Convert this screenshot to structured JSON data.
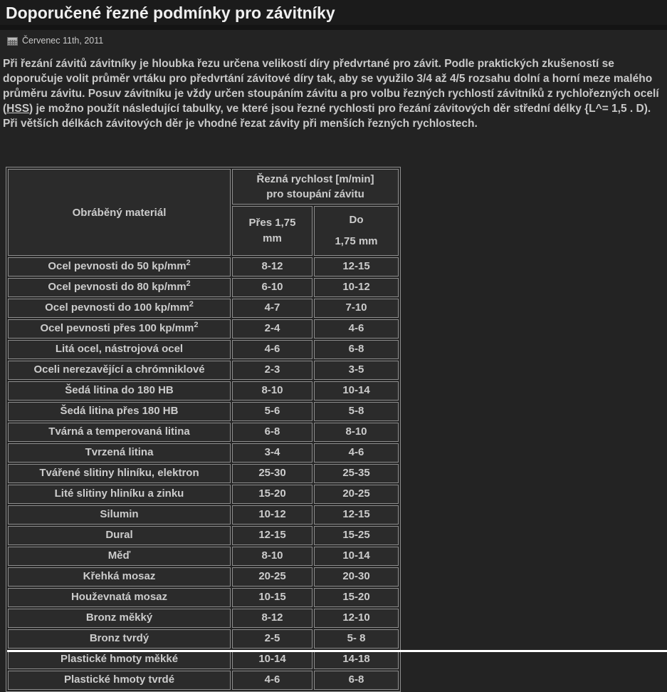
{
  "header": {
    "title": "Doporučené řezné podmínky pro závitníky",
    "date": "Červenec 11th, 2011"
  },
  "article": {
    "text_before_link": "Při řezání závitů závitníky je hloubka řezu určena velikostí díry předvrtané pro závit. Podle praktických zkušeností se doporučuje volit průměr vrtáku pro předvrtání závitové díry tak, aby se využilo 3/4 až 4/5 rozsahu dolní a horní meze malého průměru závitu. Posuv závitníku je vždy určen stoupáním závitu a pro volbu řezných rychlostí závitníků z rychlořezných ocelí (",
    "link_text": "HSS",
    "text_after_link": ") je možno použít následující tabulky, ve které jsou řezné rychlosti pro řezání závitových děr střední délky {L^= 1,5 . D). Při větších délkách závitových děr je vhodné řezat závity při menších řezných rychlostech."
  },
  "table": {
    "header": {
      "material": "Obráběný materiál",
      "speed_group": [
        "Řezná rychlost [m/min]",
        "pro stoupání závitu"
      ],
      "over_pitch": [
        "Přes 1,75",
        "mm"
      ],
      "under_pitch": [
        "Do",
        "1,75 mm"
      ]
    },
    "rows": [
      {
        "material": "Ocel pevnosti do 50 kp/mm",
        "sup": "2",
        "over": "8-12",
        "under": "12-15"
      },
      {
        "material": "Ocel pevnosti do 80 kp/mm",
        "sup": "2",
        "over": "6-10",
        "under": "10-12"
      },
      {
        "material": "Ocel pevnosti do 100 kp/mm",
        "sup": "2",
        "over": "4-7",
        "under": "7-10"
      },
      {
        "material": "Ocel pevnosti přes 100 kp/mm",
        "sup": "2",
        "over": "2-4",
        "under": "4-6"
      },
      {
        "material": "Litá ocel, nástrojová ocel",
        "over": "4-6",
        "under": "6-8"
      },
      {
        "material": "Oceli nerezavějící a chrómniklové",
        "over": "2-3",
        "under": "3-5"
      },
      {
        "material": "Šedá litina do 180 HB",
        "over": "8-10",
        "under": "10-14"
      },
      {
        "material": "Šedá litina přes 180 HB",
        "over": "5-6",
        "under": "5-8"
      },
      {
        "material": "Tvárná a temperovaná litina",
        "over": "6-8",
        "under": "8-10"
      },
      {
        "material": "Tvrzená litina",
        "over": "3-4",
        "under": "4-6"
      },
      {
        "material": "Tvářené slitiny hliníku, elektron",
        "over": "25-30",
        "under": "25-35"
      },
      {
        "material": "Lité slitiny hliníku a zinku",
        "over": "15-20",
        "under": "20-25"
      },
      {
        "material": "Silumin",
        "over": "10-12",
        "under": "12-15"
      },
      {
        "material": "Dural",
        "over": "12-15",
        "under": "15-25"
      },
      {
        "material": "Měď",
        "over": "8-10",
        "under": "10-14"
      },
      {
        "material": "Křehká mosaz",
        "over": "20-25",
        "under": "20-30"
      },
      {
        "material": "Houževnatá mosaz",
        "over": "10-15",
        "under": "15-20"
      },
      {
        "material": "Bronz měkký",
        "over": "8-12",
        "under": "12-10"
      },
      {
        "material": "Bronz tvrdý",
        "over": "2-5",
        "under": "5- 8"
      },
      {
        "material": "Plastické hmoty měkké",
        "over": "10-14",
        "under": "14-18"
      },
      {
        "material": "Plastické hmoty tvrdé",
        "over": "4-6",
        "under": "6-8"
      }
    ]
  },
  "colors": {
    "page_background": "#232323",
    "masthead_background": "#1b1b1b",
    "cell_background": "#2b2b2b",
    "table_border": "#8e8e8e",
    "body_text": "#c9c9c9",
    "title_text": "#f0f0f0",
    "bottom_strip": "#ffffff"
  }
}
